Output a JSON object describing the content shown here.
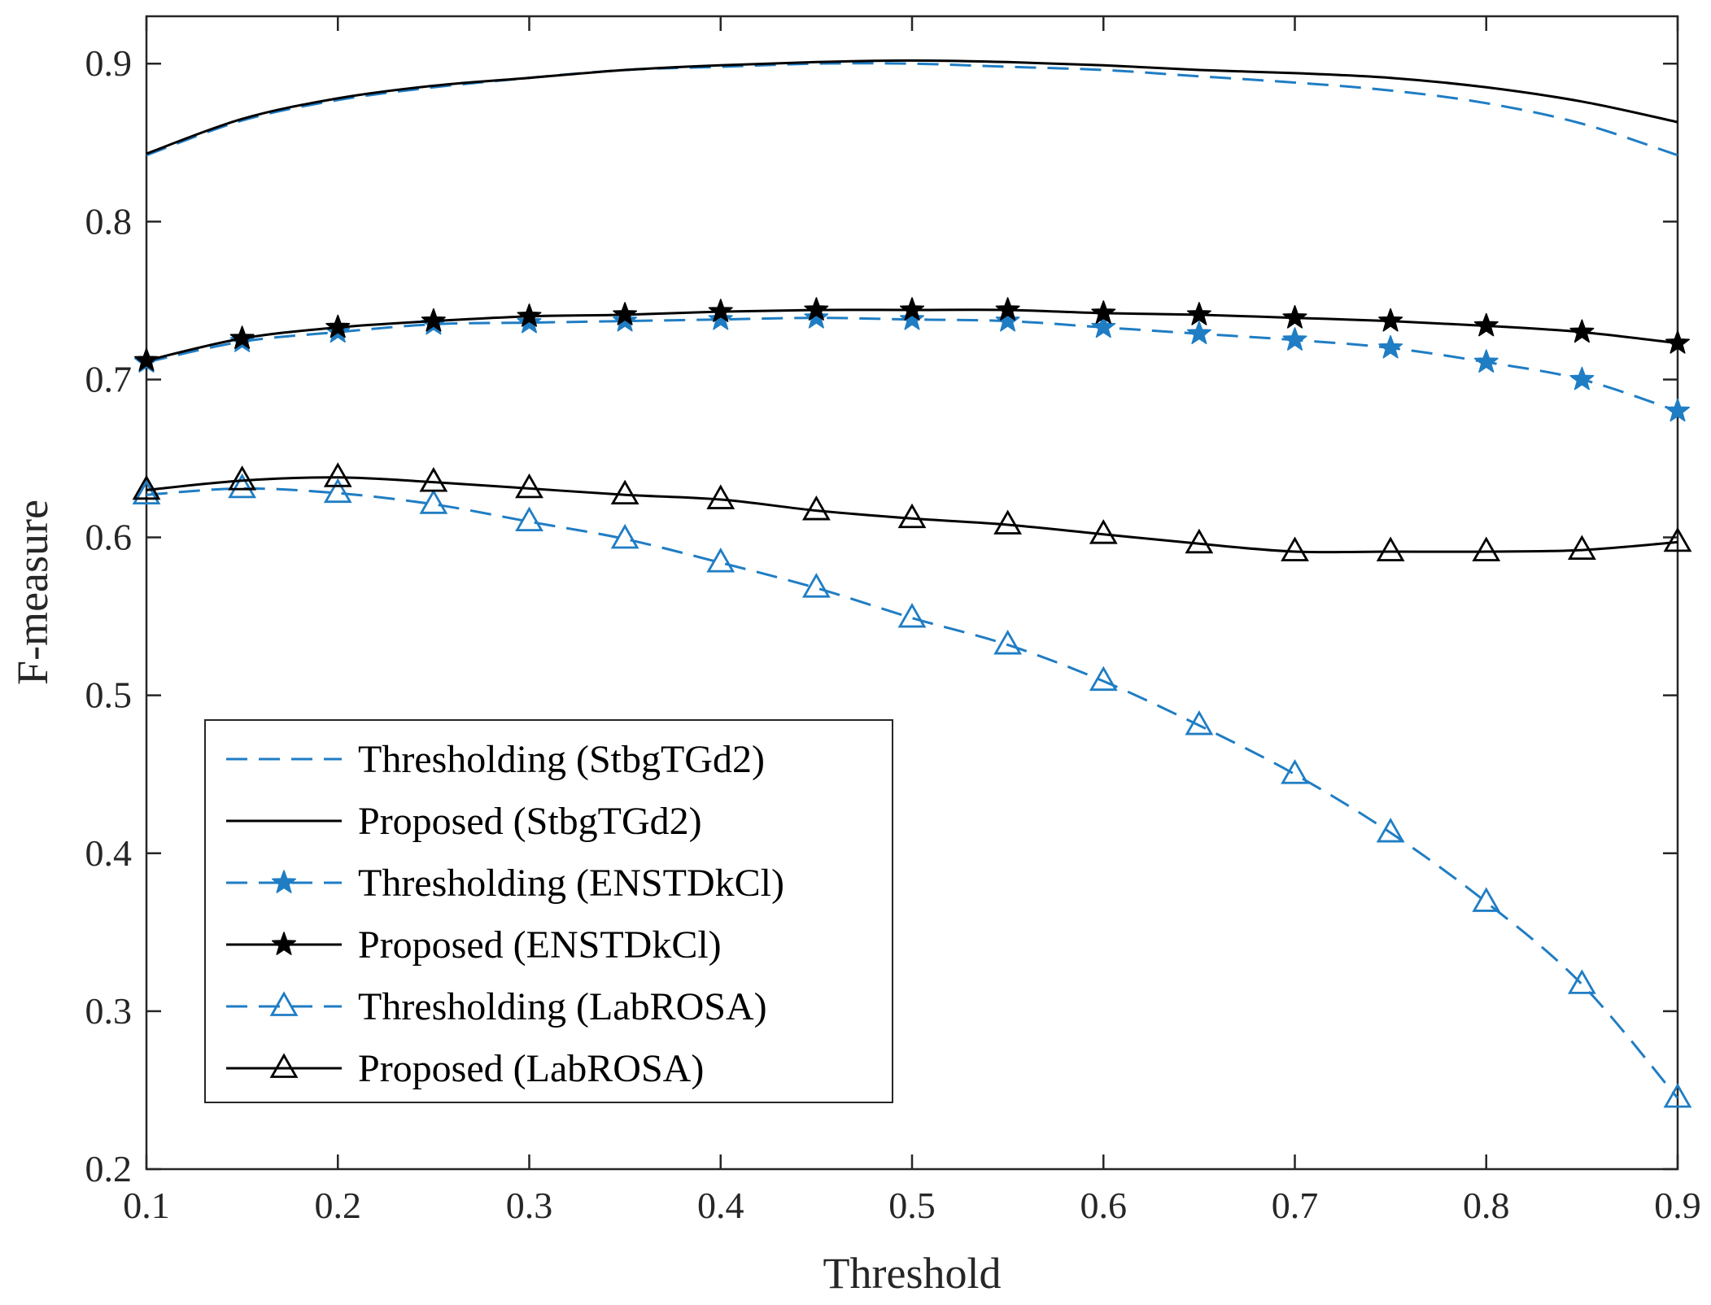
{
  "chart_data": {
    "type": "line",
    "title": "",
    "xlabel": "Threshold",
    "ylabel": "F-measure",
    "xlim": [
      0.1,
      0.9
    ],
    "ylim": [
      0.2,
      0.93
    ],
    "xticks": [
      0.1,
      0.2,
      0.3,
      0.4,
      0.5,
      0.6,
      0.7,
      0.8,
      0.9
    ],
    "xtick_labels": [
      "0.1",
      "0.2",
      "0.3",
      "0.4",
      "0.5",
      "0.6",
      "0.7",
      "0.8",
      "0.9"
    ],
    "yticks": [
      0.2,
      0.3,
      0.4,
      0.5,
      0.6,
      0.7,
      0.8,
      0.9
    ],
    "ytick_labels": [
      "0.2",
      "0.3",
      "0.4",
      "0.5",
      "0.6",
      "0.7",
      "0.8",
      "0.9"
    ],
    "grid": false,
    "legend_position": "bottom-left",
    "x": [
      0.1,
      0.15,
      0.2,
      0.25,
      0.3,
      0.35,
      0.4,
      0.45,
      0.5,
      0.55,
      0.6,
      0.65,
      0.7,
      0.75,
      0.8,
      0.85,
      0.9
    ],
    "series": [
      {
        "name": "Thresholding (StbgTGd2)",
        "color": "#1f7dc4",
        "dash": "dashed",
        "marker": "none",
        "values": [
          0.842,
          0.864,
          0.877,
          0.885,
          0.891,
          0.896,
          0.898,
          0.9,
          0.9,
          0.898,
          0.896,
          0.892,
          0.888,
          0.883,
          0.875,
          0.862,
          0.842
        ]
      },
      {
        "name": "Proposed (StbgTGd2)",
        "color": "#000000",
        "dash": "solid",
        "marker": "none",
        "values": [
          0.843,
          0.865,
          0.878,
          0.886,
          0.891,
          0.896,
          0.899,
          0.901,
          0.902,
          0.901,
          0.899,
          0.896,
          0.894,
          0.891,
          0.885,
          0.876,
          0.863
        ]
      },
      {
        "name": "Thresholding (ENSTDkCl)",
        "color": "#1f7dc4",
        "dash": "dashed",
        "marker": "star",
        "values": [
          0.711,
          0.724,
          0.73,
          0.735,
          0.736,
          0.737,
          0.738,
          0.739,
          0.738,
          0.737,
          0.733,
          0.729,
          0.725,
          0.72,
          0.711,
          0.7,
          0.68
        ]
      },
      {
        "name": "Proposed (ENSTDkCl)",
        "color": "#000000",
        "dash": "solid",
        "marker": "star",
        "values": [
          0.712,
          0.726,
          0.733,
          0.737,
          0.74,
          0.741,
          0.743,
          0.744,
          0.744,
          0.744,
          0.742,
          0.741,
          0.739,
          0.737,
          0.734,
          0.73,
          0.723
        ]
      },
      {
        "name": "Thresholding (LabROSA)",
        "color": "#1f7dc4",
        "dash": "dashed",
        "marker": "triangle",
        "values": [
          0.627,
          0.631,
          0.628,
          0.621,
          0.61,
          0.599,
          0.584,
          0.568,
          0.549,
          0.532,
          0.509,
          0.481,
          0.45,
          0.413,
          0.369,
          0.317,
          0.245
        ]
      },
      {
        "name": "Proposed (LabROSA)",
        "color": "#000000",
        "dash": "solid",
        "marker": "triangle",
        "values": [
          0.63,
          0.636,
          0.638,
          0.635,
          0.631,
          0.627,
          0.624,
          0.617,
          0.612,
          0.608,
          0.602,
          0.596,
          0.591,
          0.591,
          0.591,
          0.592,
          0.597
        ]
      }
    ]
  }
}
